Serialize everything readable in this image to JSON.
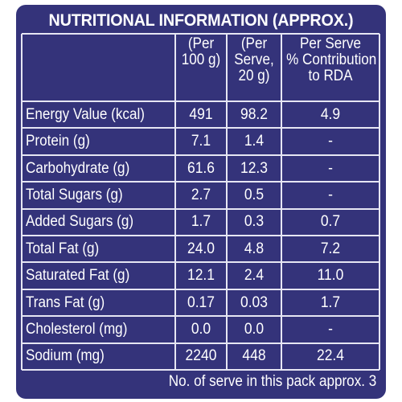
{
  "title": "NUTRITIONAL INFORMATION (APPROX.)",
  "headers": [
    {
      "lines": [
        "(Per",
        "100 g)"
      ]
    },
    {
      "lines": [
        "(Per",
        "Serve,",
        "20 g)"
      ]
    },
    {
      "lines": [
        "Per Serve",
        "% Contribution",
        "to RDA"
      ]
    }
  ],
  "rows": [
    {
      "label": "Energy Value (kcal)",
      "per100": "491",
      "perServe": "98.2",
      "rda": "4.9"
    },
    {
      "label": "Protein (g)",
      "per100": "7.1",
      "perServe": "1.4",
      "rda": "-"
    },
    {
      "label": "Carbohydrate (g)",
      "per100": "61.6",
      "perServe": "12.3",
      "rda": "-"
    },
    {
      "label": "Total Sugars (g)",
      "per100": "2.7",
      "perServe": "0.5",
      "rda": "-"
    },
    {
      "label": "Added Sugars (g)",
      "per100": "1.7",
      "perServe": "0.3",
      "rda": "0.7"
    },
    {
      "label": "Total Fat (g)",
      "per100": "24.0",
      "perServe": "4.8",
      "rda": "7.2"
    },
    {
      "label": "Saturated Fat (g)",
      "per100": "12.1",
      "perServe": "2.4",
      "rda": "11.0"
    },
    {
      "label": "Trans Fat (g)",
      "per100": "0.17",
      "perServe": "0.03",
      "rda": "1.7"
    },
    {
      "label": "Cholesterol (mg)",
      "per100": "0.0",
      "perServe": "0.0",
      "rda": "-"
    },
    {
      "label": "Sodium (mg)",
      "per100": "2240",
      "perServe": "448",
      "rda": "22.4"
    }
  ],
  "footer": "No. of serve in this pack approx. 3",
  "colors": {
    "panel_background": "#34337a",
    "text": "#ffffff",
    "rule_lines": "#e6e6f3"
  }
}
